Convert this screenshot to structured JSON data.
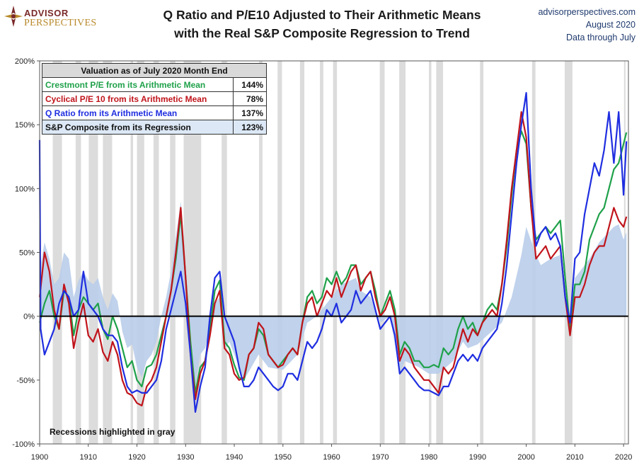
{
  "branding": {
    "logo_line1": "ADVISOR",
    "logo_line2": "PERSPECTIVES"
  },
  "header": {
    "title_line1": "Q Ratio and P/E10 Adjusted to Their Arithmetic Means",
    "title_line2": "with the Real S&P Composite Regression to Trend",
    "source_line1": "advisorperspectives.com",
    "source_line2": "August 2020",
    "source_line3": "Data through July"
  },
  "valuation_table": {
    "heading": "Valuation as of July 2020 Month End",
    "rows": [
      {
        "label": "Crestmont P/E from its Arithmetic Mean",
        "value": "144%",
        "color": "#1fa14a"
      },
      {
        "label": "Cyclical P/E 10 from its Arithmetic Mean",
        "value": "78%",
        "color": "#c0141b"
      },
      {
        "label": "Q Ratio from its Arithmetic Mean",
        "value": "137%",
        "color": "#1f2ee0"
      },
      {
        "label": "S&P Composite from its Regression",
        "value": "123%",
        "color": "#111111"
      }
    ]
  },
  "note": "Recessions highlighted in gray",
  "colors": {
    "crestmont": "#1fa14a",
    "pe10": "#c0141b",
    "qratio": "#1f2ee0",
    "sp_area": "#b9cdea",
    "recession": "#dcdcdc",
    "zero_line": "#000000"
  },
  "chart_data": {
    "type": "line",
    "title": "Q Ratio and P/E10 Adjusted to Their Arithmetic Means with the Real S&P Composite Regression to Trend",
    "xlim": [
      1900,
      2021
    ],
    "ylim": [
      -100,
      200
    ],
    "x_ticks": [
      1900,
      1910,
      1920,
      1930,
      1940,
      1950,
      1960,
      1970,
      1980,
      1990,
      2000,
      2010,
      2020
    ],
    "y_ticks": [
      -100,
      -50,
      0,
      50,
      100,
      150,
      200
    ],
    "y_tick_labels": [
      "-100%",
      "-50%",
      "0%",
      "50%",
      "100%",
      "150%",
      "200%"
    ],
    "grid": false,
    "recessions": [
      [
        1902.7,
        1904.6
      ],
      [
        1907.4,
        1908.5
      ],
      [
        1910.1,
        1912.0
      ],
      [
        1913.0,
        1914.9
      ],
      [
        1918.7,
        1919.2
      ],
      [
        1920.0,
        1921.5
      ],
      [
        1923.4,
        1924.5
      ],
      [
        1926.8,
        1927.9
      ],
      [
        1929.6,
        1933.2
      ],
      [
        1937.4,
        1938.5
      ],
      [
        1945.1,
        1945.8
      ],
      [
        1948.9,
        1949.8
      ],
      [
        1953.5,
        1954.4
      ],
      [
        1957.6,
        1958.3
      ],
      [
        1960.3,
        1961.1
      ],
      [
        1969.9,
        1970.9
      ],
      [
        1973.9,
        1975.2
      ],
      [
        1980.0,
        1980.5
      ],
      [
        1981.5,
        1982.9
      ],
      [
        1990.5,
        1991.2
      ],
      [
        2001.2,
        2001.9
      ],
      [
        2007.9,
        2009.5
      ],
      [
        2020.1,
        2020.4
      ]
    ],
    "series": [
      {
        "name": "S&P Composite from its Regression",
        "kind": "area",
        "x": [
          1900,
          1901,
          1902,
          1903,
          1904,
          1905,
          1906,
          1907,
          1908,
          1909,
          1910,
          1911,
          1912,
          1913,
          1914,
          1915,
          1916,
          1917,
          1918,
          1919,
          1920,
          1921,
          1922,
          1923,
          1924,
          1925,
          1926,
          1927,
          1928,
          1929,
          1930,
          1931,
          1932,
          1933,
          1934,
          1935,
          1936,
          1937,
          1938,
          1939,
          1940,
          1942,
          1945,
          1947,
          1950,
          1953,
          1955,
          1957,
          1960,
          1962,
          1965,
          1966,
          1968,
          1970,
          1972,
          1974,
          1975,
          1978,
          1980,
          1982,
          1985,
          1987,
          1988,
          1990,
          1992,
          1995,
          1997,
          1999,
          2000,
          2002,
          2003,
          2005,
          2007,
          2009,
          2010,
          2013,
          2015,
          2018,
          2019,
          2020,
          2020.6
        ],
        "values": [
          35,
          58,
          45,
          25,
          30,
          50,
          45,
          15,
          28,
          35,
          28,
          25,
          30,
          15,
          5,
          18,
          12,
          -12,
          -25,
          -22,
          -40,
          -48,
          -35,
          -30,
          -20,
          0,
          15,
          35,
          62,
          90,
          40,
          -10,
          -55,
          -30,
          -25,
          -10,
          10,
          15,
          -25,
          -20,
          -30,
          -50,
          -30,
          -40,
          -42,
          -30,
          -5,
          0,
          15,
          25,
          30,
          20,
          15,
          -5,
          0,
          -45,
          -35,
          -40,
          -45,
          -45,
          -35,
          -20,
          -25,
          -22,
          -15,
          -5,
          15,
          48,
          70,
          48,
          40,
          45,
          48,
          -5,
          30,
          45,
          58,
          70,
          72,
          60,
          66
        ]
      },
      {
        "name": "Crestmont P/E from its Arithmetic Mean",
        "kind": "line",
        "x": [
          1900,
          1901,
          1902,
          1903,
          1904,
          1905,
          1906,
          1907,
          1908,
          1909,
          1910,
          1911,
          1912,
          1913,
          1914,
          1915,
          1916,
          1917,
          1918,
          1919,
          1920,
          1921,
          1922,
          1923,
          1924,
          1925,
          1926,
          1927,
          1928,
          1929,
          1930,
          1931,
          1932,
          1933,
          1934,
          1935,
          1936,
          1937,
          1938,
          1939,
          1940,
          1941,
          1942,
          1943,
          1944,
          1945,
          1946,
          1947,
          1948,
          1949,
          1950,
          1951,
          1952,
          1953,
          1954,
          1955,
          1956,
          1957,
          1958,
          1959,
          1960,
          1961,
          1962,
          1963,
          1964,
          1965,
          1966,
          1967,
          1968,
          1969,
          1970,
          1971,
          1972,
          1973,
          1974,
          1975,
          1976,
          1977,
          1978,
          1979,
          1980,
          1981,
          1982,
          1983,
          1984,
          1985,
          1986,
          1987,
          1988,
          1989,
          1990,
          1991,
          1992,
          1993,
          1994,
          1995,
          1996,
          1997,
          1998,
          1999,
          2000,
          2001,
          2002,
          2003,
          2004,
          2005,
          2006,
          2007,
          2008,
          2009,
          2010,
          2011,
          2012,
          2013,
          2014,
          2015,
          2016,
          2017,
          2018,
          2019,
          2020,
          2020.6
        ],
        "values": [
          -5,
          10,
          20,
          0,
          -10,
          20,
          15,
          -15,
          5,
          15,
          10,
          5,
          10,
          -10,
          -18,
          0,
          -10,
          -25,
          -40,
          -35,
          -50,
          -55,
          -40,
          -38,
          -30,
          -15,
          0,
          20,
          45,
          80,
          30,
          -20,
          -60,
          -40,
          -35,
          -10,
          20,
          28,
          -20,
          -25,
          -38,
          -48,
          -50,
          -30,
          -25,
          -10,
          -15,
          -30,
          -35,
          -40,
          -35,
          -30,
          -25,
          -30,
          -5,
          15,
          20,
          10,
          15,
          30,
          25,
          35,
          25,
          30,
          40,
          40,
          25,
          30,
          35,
          20,
          0,
          10,
          20,
          5,
          -30,
          -20,
          -25,
          -35,
          -35,
          -40,
          -40,
          -38,
          -40,
          -25,
          -30,
          -25,
          -10,
          0,
          -10,
          -5,
          -15,
          -5,
          5,
          10,
          5,
          25,
          55,
          95,
          130,
          145,
          135,
          85,
          60,
          65,
          70,
          65,
          70,
          75,
          30,
          -10,
          25,
          25,
          35,
          60,
          70,
          80,
          85,
          100,
          115,
          120,
          135,
          144
        ]
      },
      {
        "name": "Cyclical P/E 10 from its Arithmetic Mean",
        "kind": "line",
        "x": [
          1900,
          1901,
          1902,
          1903,
          1904,
          1905,
          1906,
          1907,
          1908,
          1909,
          1910,
          1911,
          1912,
          1913,
          1914,
          1915,
          1916,
          1917,
          1918,
          1919,
          1920,
          1921,
          1922,
          1923,
          1924,
          1925,
          1926,
          1927,
          1928,
          1929,
          1930,
          1931,
          1932,
          1933,
          1934,
          1935,
          1936,
          1937,
          1938,
          1939,
          1940,
          1941,
          1942,
          1943,
          1944,
          1945,
          1946,
          1947,
          1948,
          1949,
          1950,
          1951,
          1952,
          1953,
          1954,
          1955,
          1956,
          1957,
          1958,
          1959,
          1960,
          1961,
          1962,
          1963,
          1964,
          1965,
          1966,
          1967,
          1968,
          1969,
          1970,
          1971,
          1972,
          1973,
          1974,
          1975,
          1976,
          1977,
          1978,
          1979,
          1980,
          1981,
          1982,
          1983,
          1984,
          1985,
          1986,
          1987,
          1988,
          1989,
          1990,
          1991,
          1992,
          1993,
          1994,
          1995,
          1996,
          1997,
          1998,
          1999,
          2000,
          2001,
          2002,
          2003,
          2004,
          2005,
          2006,
          2007,
          2008,
          2009,
          2010,
          2011,
          2012,
          2013,
          2014,
          2015,
          2016,
          2017,
          2018,
          2019,
          2020,
          2020.6
        ],
        "values": [
          15,
          50,
          35,
          5,
          -10,
          25,
          10,
          -25,
          -5,
          10,
          -15,
          -20,
          -10,
          -28,
          -35,
          -20,
          -30,
          -50,
          -60,
          -62,
          -68,
          -70,
          -55,
          -50,
          -40,
          -20,
          0,
          20,
          50,
          85,
          30,
          -30,
          -65,
          -45,
          -35,
          -15,
          10,
          20,
          -25,
          -30,
          -45,
          -50,
          -48,
          -30,
          -25,
          -5,
          -10,
          -30,
          -35,
          -40,
          -38,
          -30,
          -25,
          -30,
          -5,
          10,
          15,
          0,
          10,
          20,
          15,
          30,
          15,
          25,
          35,
          40,
          20,
          30,
          35,
          15,
          0,
          5,
          15,
          0,
          -35,
          -25,
          -30,
          -40,
          -45,
          -50,
          -50,
          -55,
          -60,
          -40,
          -45,
          -40,
          -25,
          -10,
          -20,
          -10,
          -15,
          -5,
          0,
          5,
          0,
          25,
          60,
          100,
          130,
          160,
          140,
          85,
          45,
          50,
          55,
          45,
          50,
          55,
          15,
          -15,
          15,
          15,
          25,
          40,
          50,
          55,
          55,
          70,
          85,
          75,
          70,
          78
        ]
      },
      {
        "name": "Q Ratio from its Arithmetic Mean",
        "kind": "line",
        "x": [
          1900,
          1900.2,
          1901,
          1902,
          1903,
          1904,
          1905,
          1906,
          1907,
          1908,
          1909,
          1910,
          1911,
          1912,
          1913,
          1914,
          1915,
          1916,
          1917,
          1918,
          1919,
          1920,
          1921,
          1922,
          1923,
          1924,
          1925,
          1926,
          1927,
          1928,
          1929,
          1930,
          1931,
          1932,
          1933,
          1934,
          1935,
          1936,
          1937,
          1938,
          1939,
          1940,
          1941,
          1942,
          1943,
          1944,
          1945,
          1946,
          1947,
          1948,
          1949,
          1950,
          1951,
          1952,
          1953,
          1954,
          1955,
          1956,
          1957,
          1958,
          1959,
          1960,
          1961,
          1962,
          1963,
          1964,
          1965,
          1966,
          1967,
          1968,
          1969,
          1970,
          1971,
          1972,
          1973,
          1974,
          1975,
          1976,
          1977,
          1978,
          1979,
          1980,
          1981,
          1982,
          1983,
          1984,
          1985,
          1986,
          1987,
          1988,
          1989,
          1990,
          1991,
          1992,
          1993,
          1994,
          1995,
          1996,
          1997,
          1998,
          1999,
          2000,
          2001,
          2002,
          2003,
          2004,
          2005,
          2006,
          2007,
          2008,
          2009,
          2010,
          2011,
          2012,
          2013,
          2014,
          2015,
          2016,
          2017,
          2018,
          2019,
          2020,
          2020.6
        ],
        "values": [
          138,
          -10,
          -30,
          -20,
          -10,
          10,
          20,
          15,
          0,
          5,
          35,
          10,
          5,
          0,
          -10,
          -15,
          -15,
          -20,
          -40,
          -55,
          -60,
          -58,
          -60,
          -60,
          -55,
          -50,
          -35,
          -10,
          5,
          20,
          35,
          10,
          -30,
          -75,
          -55,
          -40,
          0,
          30,
          35,
          0,
          -10,
          -20,
          -40,
          -55,
          -55,
          -50,
          -40,
          -45,
          -50,
          -55,
          -58,
          -55,
          -45,
          -45,
          -50,
          -35,
          -20,
          -25,
          -20,
          -10,
          5,
          0,
          10,
          -5,
          0,
          5,
          20,
          10,
          15,
          20,
          5,
          -10,
          -5,
          0,
          -15,
          -45,
          -40,
          -45,
          -50,
          -55,
          -58,
          -58,
          -60,
          -62,
          -55,
          -55,
          -45,
          -35,
          -30,
          -35,
          -30,
          -35,
          -25,
          -20,
          -15,
          -10,
          10,
          40,
          80,
          120,
          150,
          175,
          100,
          55,
          65,
          70,
          60,
          65,
          55,
          15,
          -5,
          45,
          50,
          80,
          100,
          120,
          110,
          130,
          160,
          120,
          160,
          95,
          137
        ]
      }
    ]
  }
}
